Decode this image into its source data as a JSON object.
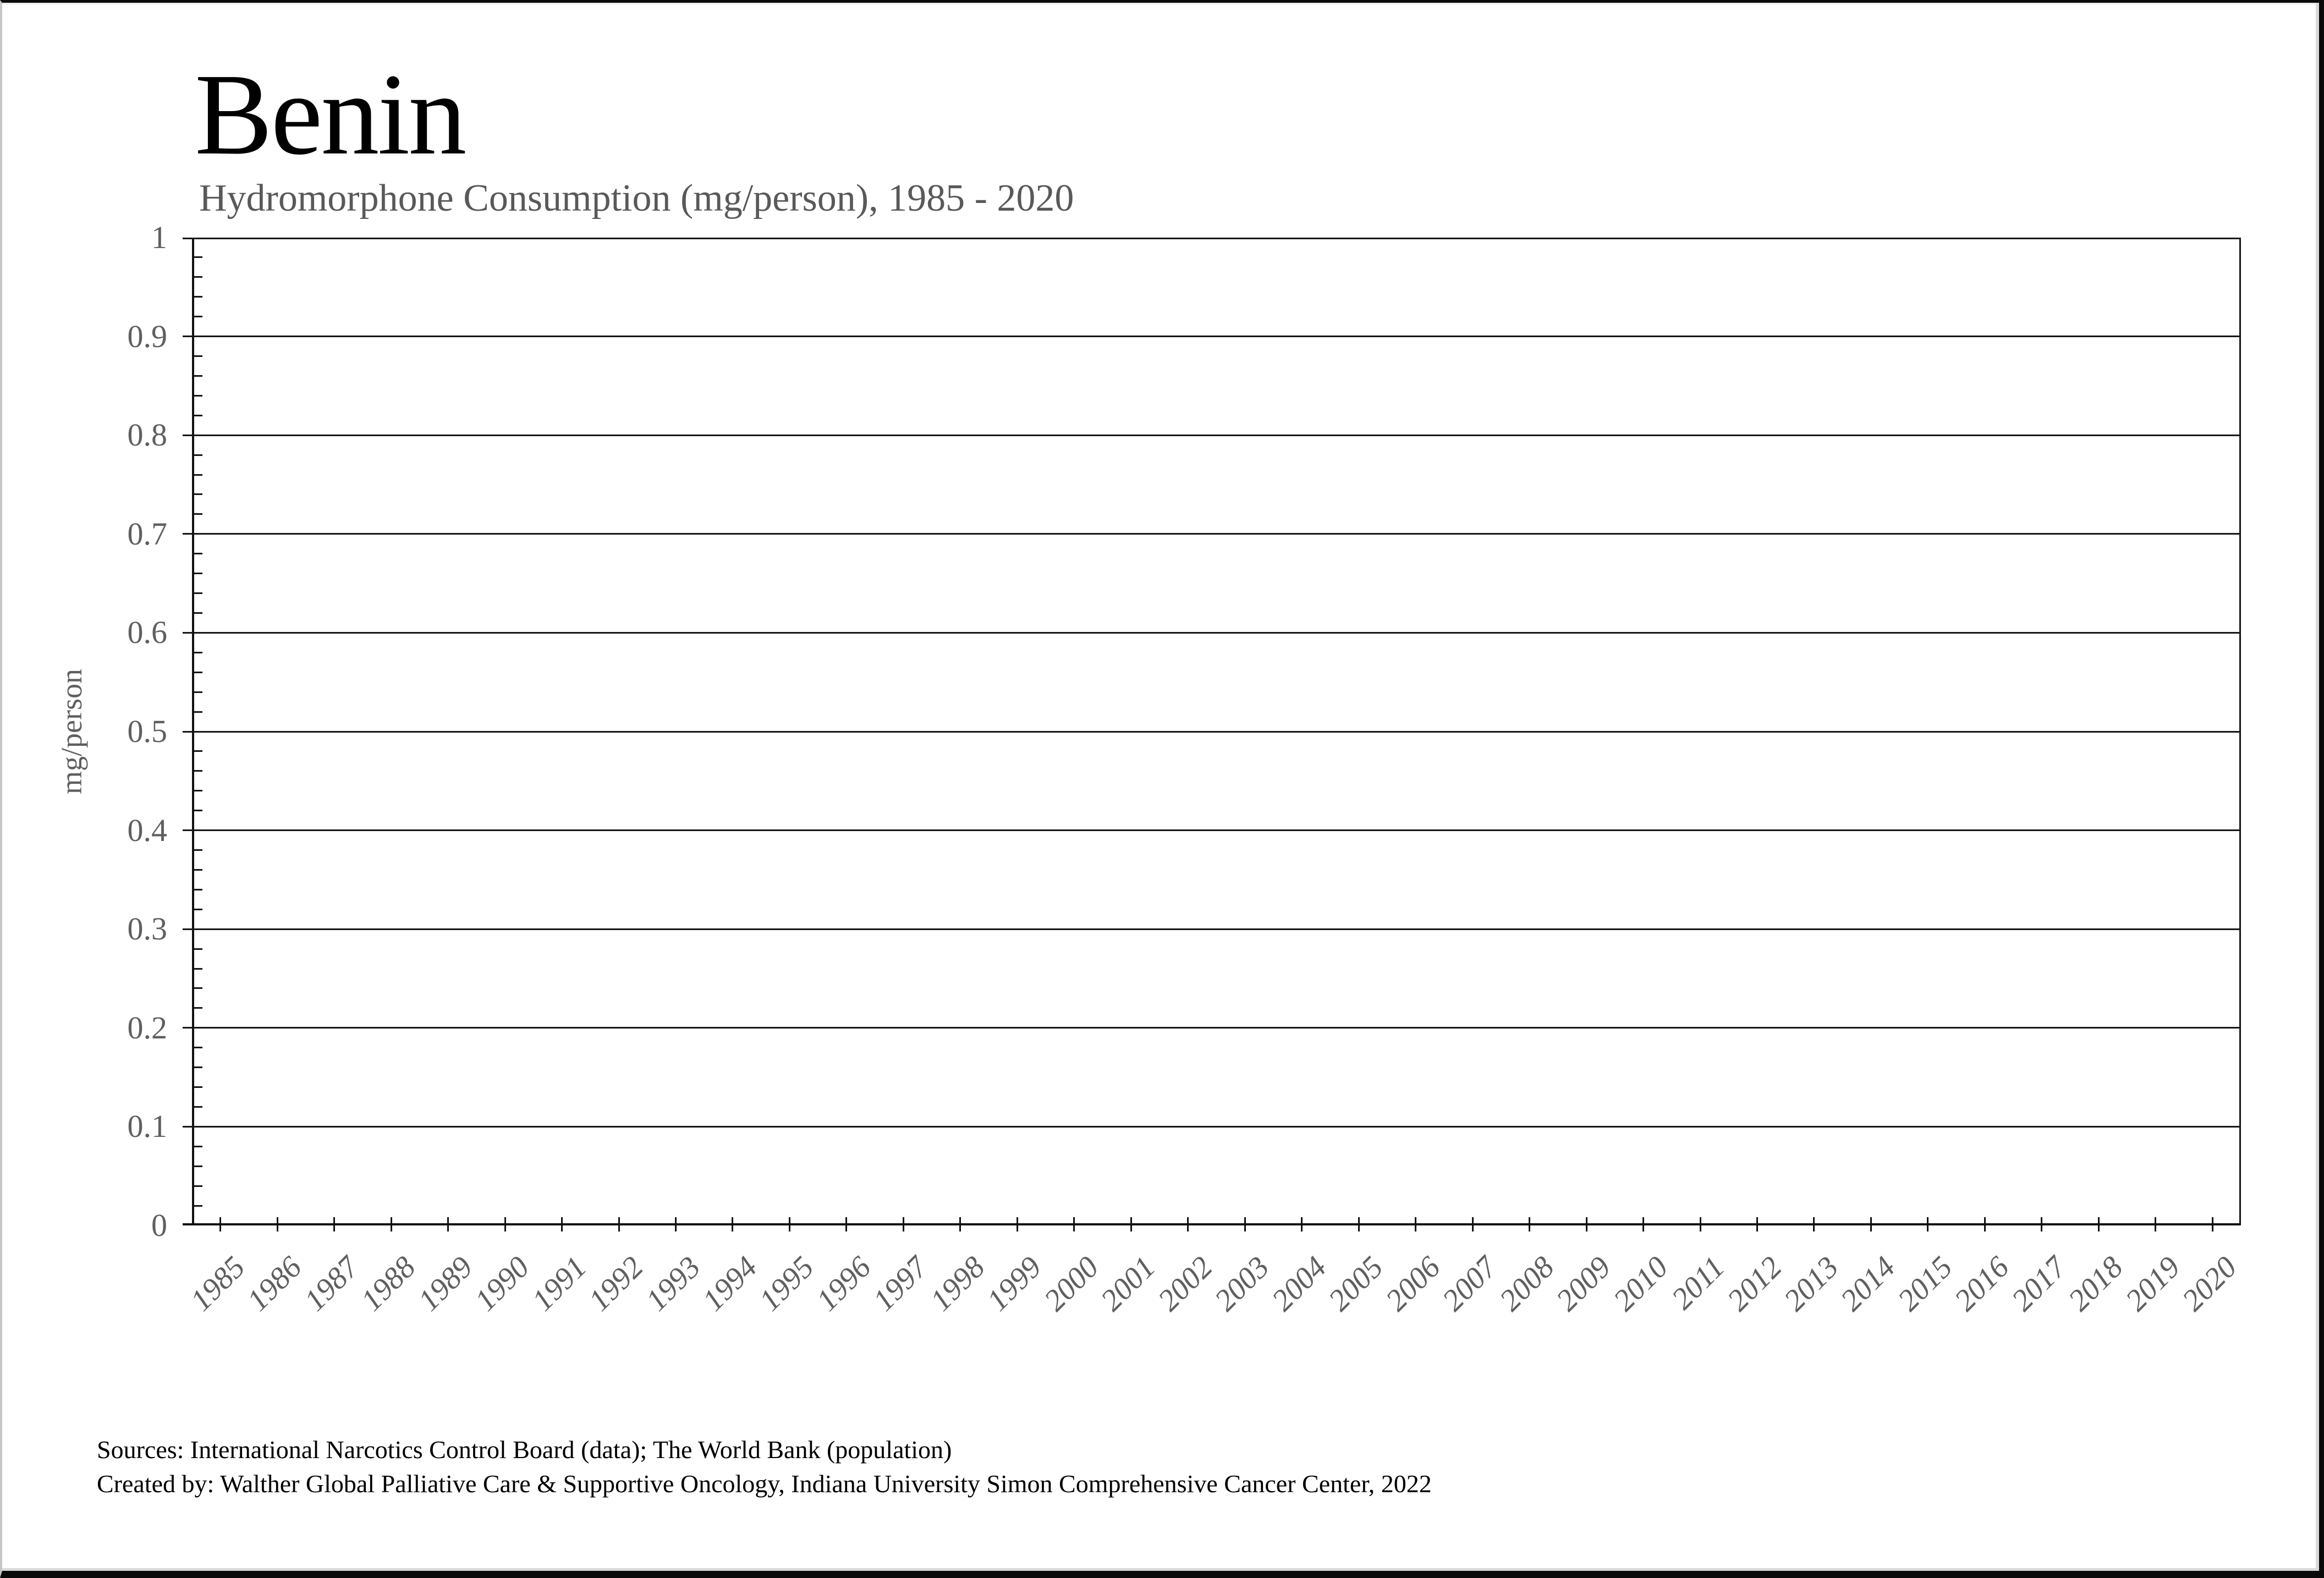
{
  "page": {
    "title": "Benin",
    "subtitle": "Hydromorphone Consumption (mg/person), 1985 - 2020"
  },
  "footer": {
    "sources_line": "Sources: International Narcotics Control Board (data); The World Bank (population)",
    "credit_line": "Created by: Walther Global Palliative Care & Supportive Oncology, Indiana University Simon Comprehensive Cancer Center, 2022"
  },
  "chart_data": {
    "type": "line",
    "title": "Benin",
    "subtitle": "Hydromorphone Consumption (mg/person), 1985 - 2020",
    "xlabel": "",
    "ylabel": "mg/person",
    "ylim": [
      0,
      1
    ],
    "ytick_step": 0.1,
    "y_minor_tick_step": 0.02,
    "ytick_labels": [
      "0",
      "0.1",
      "0.2",
      "0.3",
      "0.4",
      "0.5",
      "0.6",
      "0.7",
      "0.8",
      "0.9",
      "1"
    ],
    "categories": [
      "1985",
      "1986",
      "1987",
      "1988",
      "1989",
      "1990",
      "1991",
      "1992",
      "1993",
      "1994",
      "1995",
      "1996",
      "1997",
      "1998",
      "1999",
      "2000",
      "2001",
      "2002",
      "2003",
      "2004",
      "2005",
      "2006",
      "2007",
      "2008",
      "2009",
      "2010",
      "2011",
      "2012",
      "2013",
      "2014",
      "2015",
      "2016",
      "2017",
      "2018",
      "2019",
      "2020"
    ],
    "series": [],
    "legend": "none",
    "grid": "horizontal-major",
    "notes": "Plot area is empty; no data series is drawn for 1985-2020."
  },
  "colors": {
    "page_background": "#ffffff",
    "frame_border": "#0a0a0a",
    "title_text": "#000000",
    "subtitle_text": "#595959",
    "tick_label_text": "#5f5f5f",
    "axis_title_text": "#5f5f5f",
    "footer_text": "#000000",
    "axis_line": "#111111",
    "gridline": "#161616"
  }
}
